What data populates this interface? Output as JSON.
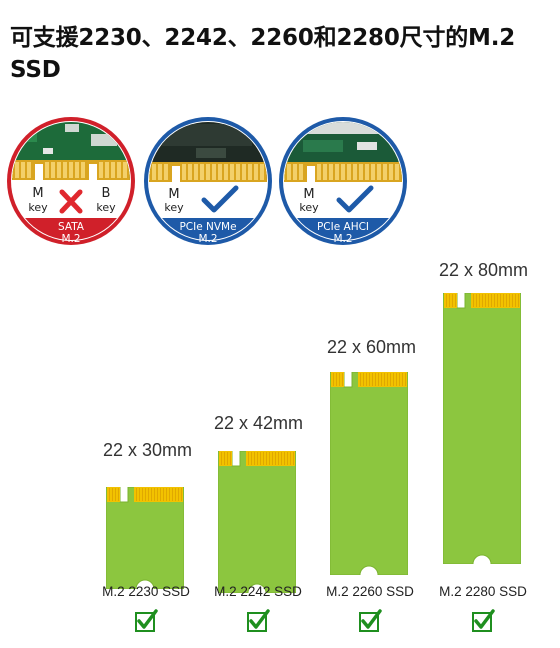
{
  "headline": "可支援2230、2242、2260和2280尺寸的M.2 SSD",
  "interfaces": [
    {
      "left_key": "M",
      "left_key_sub": "key",
      "right_key": "B",
      "right_key_sub": "key",
      "status": "incompatible",
      "footer_line1": "SATA",
      "footer_line2": "M.2",
      "ring_color": "#d0202a"
    },
    {
      "left_key": "M",
      "left_key_sub": "key",
      "status": "compatible",
      "footer_line1": "PCIe NVMe",
      "footer_line2": "M.2",
      "ring_color": "#1e5aa8"
    },
    {
      "left_key": "M",
      "left_key_sub": "key",
      "status": "compatible",
      "footer_line1": "PCIe AHCI",
      "footer_line2": "M.2",
      "ring_color": "#1e5aa8"
    }
  ],
  "drives": [
    {
      "size": "22 x 30mm",
      "model": "M.2 2230 SSD",
      "length_mm": 30,
      "supported": true
    },
    {
      "size": "22 x 42mm",
      "model": "M.2 2242 SSD",
      "length_mm": 42,
      "supported": true
    },
    {
      "size": "22 x 60mm",
      "model": "M.2 2260 SSD",
      "length_mm": 60,
      "supported": true
    },
    {
      "size": "22 x 80mm",
      "model": "M.2 2280 SSD",
      "length_mm": 80,
      "supported": true
    }
  ],
  "colors": {
    "pcb_green": "#8cc63f",
    "pcb_green_edge": "#7ab32f",
    "gold_contact": "#f2c200",
    "check_green": "#1f8f1f",
    "cross_red": "#e0282e"
  }
}
